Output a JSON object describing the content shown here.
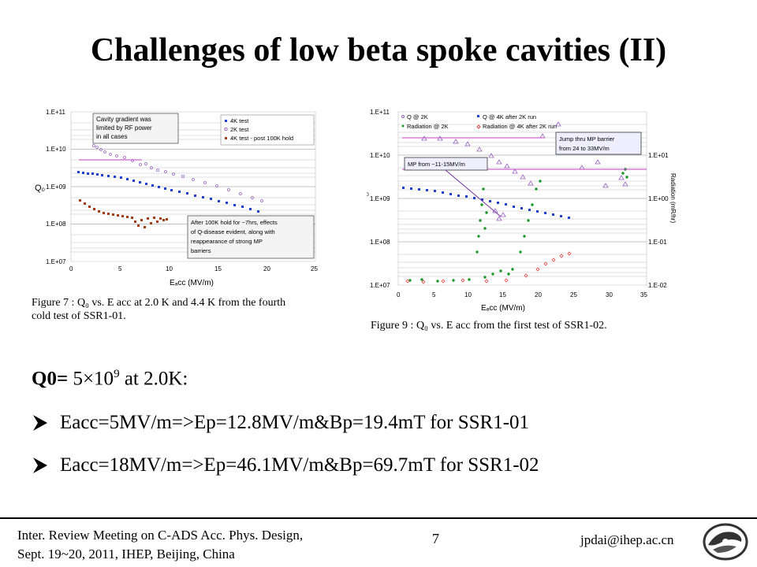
{
  "title": "Challenges of low beta spoke cavities (II)",
  "figure1": {
    "caption_line1": "Figure 7 : Q₀ vs.  E acc  at 2.0 K and 4.4 K from the fourth",
    "caption_line2": "cold test of SSR1-01.",
    "ylabel": "Q₀",
    "xlabel": "Eₐcc (MV/m)",
    "y_ticks": [
      "1.E+11",
      "1.E+10",
      "1.E+09",
      "1.E+08",
      "1.E+07"
    ],
    "x_ticks": [
      "0",
      "5",
      "10",
      "15",
      "20",
      "25"
    ],
    "annotation_top": [
      "Cavity gradient was",
      "limited by RF power",
      "in all cases"
    ],
    "legend": [
      "4K test",
      "2K test",
      "4K test - post 100K hold"
    ],
    "annotation_bottom": [
      "After 100K hold for ~7hrs, effects",
      "of Q-disease evident, along with",
      "reappearance of strong MP",
      "barriers"
    ]
  },
  "figure2": {
    "caption": "Figure 9 : Q₀ vs.  E acc   from the  first test of SSR1-02.",
    "ylabel": "Q₀",
    "y2label": "Radiation (mR/hr)",
    "xlabel": "Eₐcc (MV/m)",
    "y_ticks": [
      "1.E+11",
      "1.E+10",
      "1.E+09",
      "1.E+08",
      "1.E+07"
    ],
    "y2_ticks": [
      "1.E+01",
      "1.E+00",
      "1.E-01",
      "1.E-02"
    ],
    "x_ticks": [
      "0",
      "5",
      "10",
      "15",
      "20",
      "25",
      "30",
      "35"
    ],
    "legend": [
      "Q @ 2K",
      "Q @ 4K after 2K run",
      "Radiation @ 2K",
      "Radiation @ 4K after 2K run"
    ],
    "annotation_mp": "MP from ~11-15MV/m",
    "annotation_jump": [
      "Jump thru MP barrier",
      "from 24 to 33MV/m"
    ]
  },
  "q0_line": {
    "prefix": "Q0=",
    "value": " 5×10",
    "exp": "9",
    "suffix": " at 2.0K:"
  },
  "bullets": [
    "Eacc=5MV/m=>Ep=12.8MV/m&Bp=19.4mT  for SSR1-01",
    "Eacc=18MV/m=>Ep=46.1MV/m&Bp=69.7mT  for SSR1-02"
  ],
  "footer": {
    "line1": "Inter. Review Meeting on C-ADS Acc. Phys. Design,",
    "line2": "Sept. 19~20, 2011, IHEP, Beijing, China",
    "page": "7",
    "email": "jpdai@ihep.ac.cn"
  },
  "colors": {
    "blue": "#1f3fd0",
    "violet": "#9a5fc0",
    "brown": "#a63a10",
    "green": "#1a9a2a",
    "red": "#e04040",
    "magenta": "#c040c0"
  }
}
